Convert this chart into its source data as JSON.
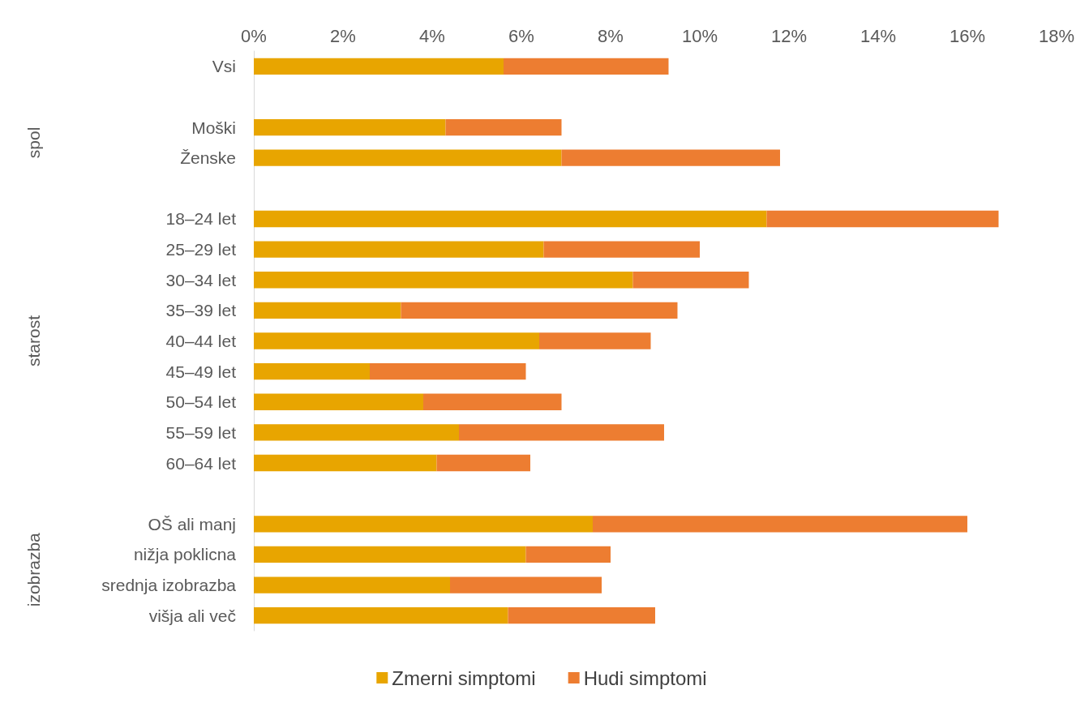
{
  "chart_data": {
    "type": "bar",
    "orientation": "horizontal",
    "stacked": true,
    "categories": [
      "Vsi",
      null,
      "Moški",
      "Ženske",
      null,
      "18–24 let",
      "25–29 let",
      "30–34 let",
      "35–39 let",
      "40–44 let",
      "45–49 let",
      "50–54 let",
      "55–59 let",
      "60–64 let",
      null,
      "OŠ ali manj",
      "nižja poklicna",
      "srednja izobrazba",
      "višja ali več"
    ],
    "series": [
      {
        "name": "Zmerni simptomi",
        "color": "#e8a500",
        "values": [
          5.6,
          null,
          4.3,
          6.9,
          null,
          11.5,
          6.5,
          8.5,
          3.3,
          6.4,
          2.6,
          3.8,
          4.6,
          4.1,
          null,
          7.6,
          6.1,
          4.4,
          5.7
        ]
      },
      {
        "name": "Hudi simptomi",
        "color": "#ed7d31",
        "values": [
          3.7,
          null,
          2.6,
          4.9,
          null,
          5.2,
          3.5,
          2.6,
          6.2,
          2.5,
          3.5,
          3.1,
          4.6,
          2.1,
          null,
          8.4,
          1.9,
          3.4,
          3.3
        ]
      }
    ],
    "xlim": [
      0,
      18
    ],
    "xticks": [
      {
        "value": 0,
        "label": "0%"
      },
      {
        "value": 2,
        "label": "2%"
      },
      {
        "value": 4,
        "label": "4%"
      },
      {
        "value": 6,
        "label": "6%"
      },
      {
        "value": 8,
        "label": "8%"
      },
      {
        "value": 10,
        "label": "10%"
      },
      {
        "value": 12,
        "label": "12%"
      },
      {
        "value": 14,
        "label": "14%"
      },
      {
        "value": 16,
        "label": "16%"
      },
      {
        "value": 18,
        "label": "18%"
      }
    ],
    "annotations": [
      "spol",
      "starost",
      "izobrazba"
    ],
    "legend": "bottom"
  }
}
